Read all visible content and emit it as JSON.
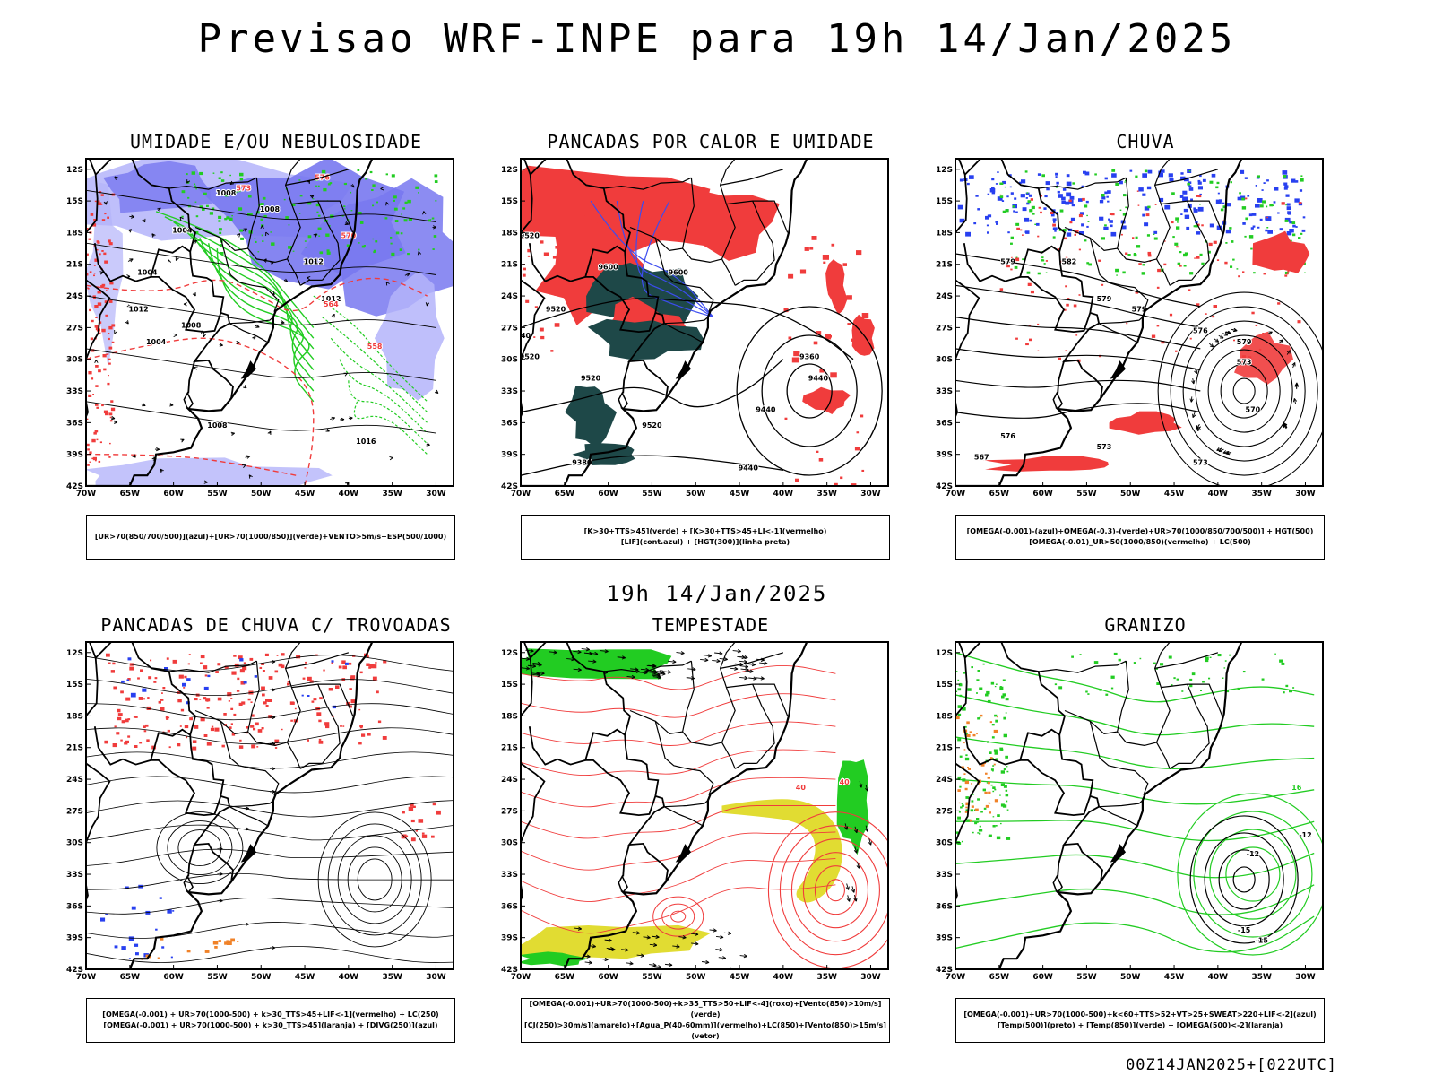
{
  "title": "Previsao WRF-INPE  para 19h 14/Jan/2025",
  "mid_title": "19h 14/Jan/2025",
  "footer": "00Z14JAN2025+[022UTC]",
  "lat_labels": [
    "12S",
    "15S",
    "18S",
    "21S",
    "24S",
    "27S",
    "30S",
    "33S",
    "36S",
    "39S",
    "42S"
  ],
  "lon_labels": [
    "70W",
    "65W",
    "60W",
    "55W",
    "50W",
    "45W",
    "40W",
    "35W",
    "30W"
  ],
  "colors": {
    "blue_shade": "#7878f0",
    "light_blue": "#b4b4fa",
    "green": "#22cc22",
    "red": "#f03c3c",
    "dark_teal": "#1e4848",
    "yellow": "#e1dc32",
    "orange": "#f08228",
    "black": "#000000"
  },
  "panels": [
    {
      "id": "umidade",
      "title": "UMIDADE E/OU NEBULOSIDADE",
      "legend": [
        "[UR>70(850/700/500)](azul)+[UR>70(1000/850)](verde)+VENTO>5m/s+ESP(500/1000)"
      ],
      "contour_labels": [
        "1008",
        "1008",
        "1004",
        "1012",
        "1012",
        "1012",
        "1004",
        "1004",
        "1008",
        "1016",
        "1008",
        "576",
        "573",
        "570",
        "564",
        "558"
      ]
    },
    {
      "id": "pancadas-calor",
      "title": "PANCADAS POR CALOR E UMIDADE",
      "legend": [
        "[K>30+TTS>45](verde) + [K>30+TTS>45+LI<-1](vermelho)",
        "[LIF](cont.azul) + [HGT(300)](linha preta)"
      ],
      "contour_labels": [
        "9520",
        "9600",
        "9600",
        "9520",
        "9440",
        "9520",
        "9520",
        "9520",
        "9440",
        "9360",
        "9440",
        "9380",
        "9440"
      ]
    },
    {
      "id": "chuva",
      "title": "CHUVA",
      "legend": [
        "[OMEGA(-0.001)-(azul)+OMEGA(-0.3)-(verde)+UR>70(1000/850/700/500)] + HGT(500)",
        "[OMEGA(-0.01)_UR>50(1000/850)(vermelho) + LC(500)"
      ],
      "contour_labels": [
        "579",
        "582",
        "579",
        "579",
        "576",
        "579",
        "573",
        "576",
        "573",
        "570",
        "567",
        "573"
      ]
    },
    {
      "id": "pancadas-trovoadas",
      "title": "PANCADAS DE CHUVA C/ TROVOADAS",
      "legend": [
        "[OMEGA(-0.001) + UR>70(1000-500) + k>30_TTS>45+LIF<-1](vermelho) + LC(250)",
        "[OMEGA(-0.001) + UR>70(1000-500) + k>30_TTS>45](laranja) + [DIVG(250)](azul)"
      ],
      "contour_labels": []
    },
    {
      "id": "tempestade",
      "title": "TEMPESTADE",
      "legend": [
        "[OMEGA(-0.001)+UR>70(1000-500)+k>35_TTS>50+LIF<-4](roxo)+[Vento(850)>10m/s](verde)",
        "[CJ(250)>30m/s](amarelo)+[Agua_P(40-60mm)](vermelho)+LC(850)+[Vento(850)>15m/s](vetor)"
      ],
      "contour_labels": [
        "40",
        "40"
      ]
    },
    {
      "id": "granizo",
      "title": "GRANIZO",
      "legend": [
        "[OMEGA(-0.001)+UR>70(1000-500)+k<60+TTS>52+VT>25+SWEAT>220+LIF<-2](azul)",
        "[Temp(500)](preto) + [Temp(850)](verde) + [OMEGA(500)<-2](laranja)"
      ],
      "contour_labels": [
        "-12",
        "-15",
        "-15",
        "-12",
        "16"
      ]
    }
  ]
}
